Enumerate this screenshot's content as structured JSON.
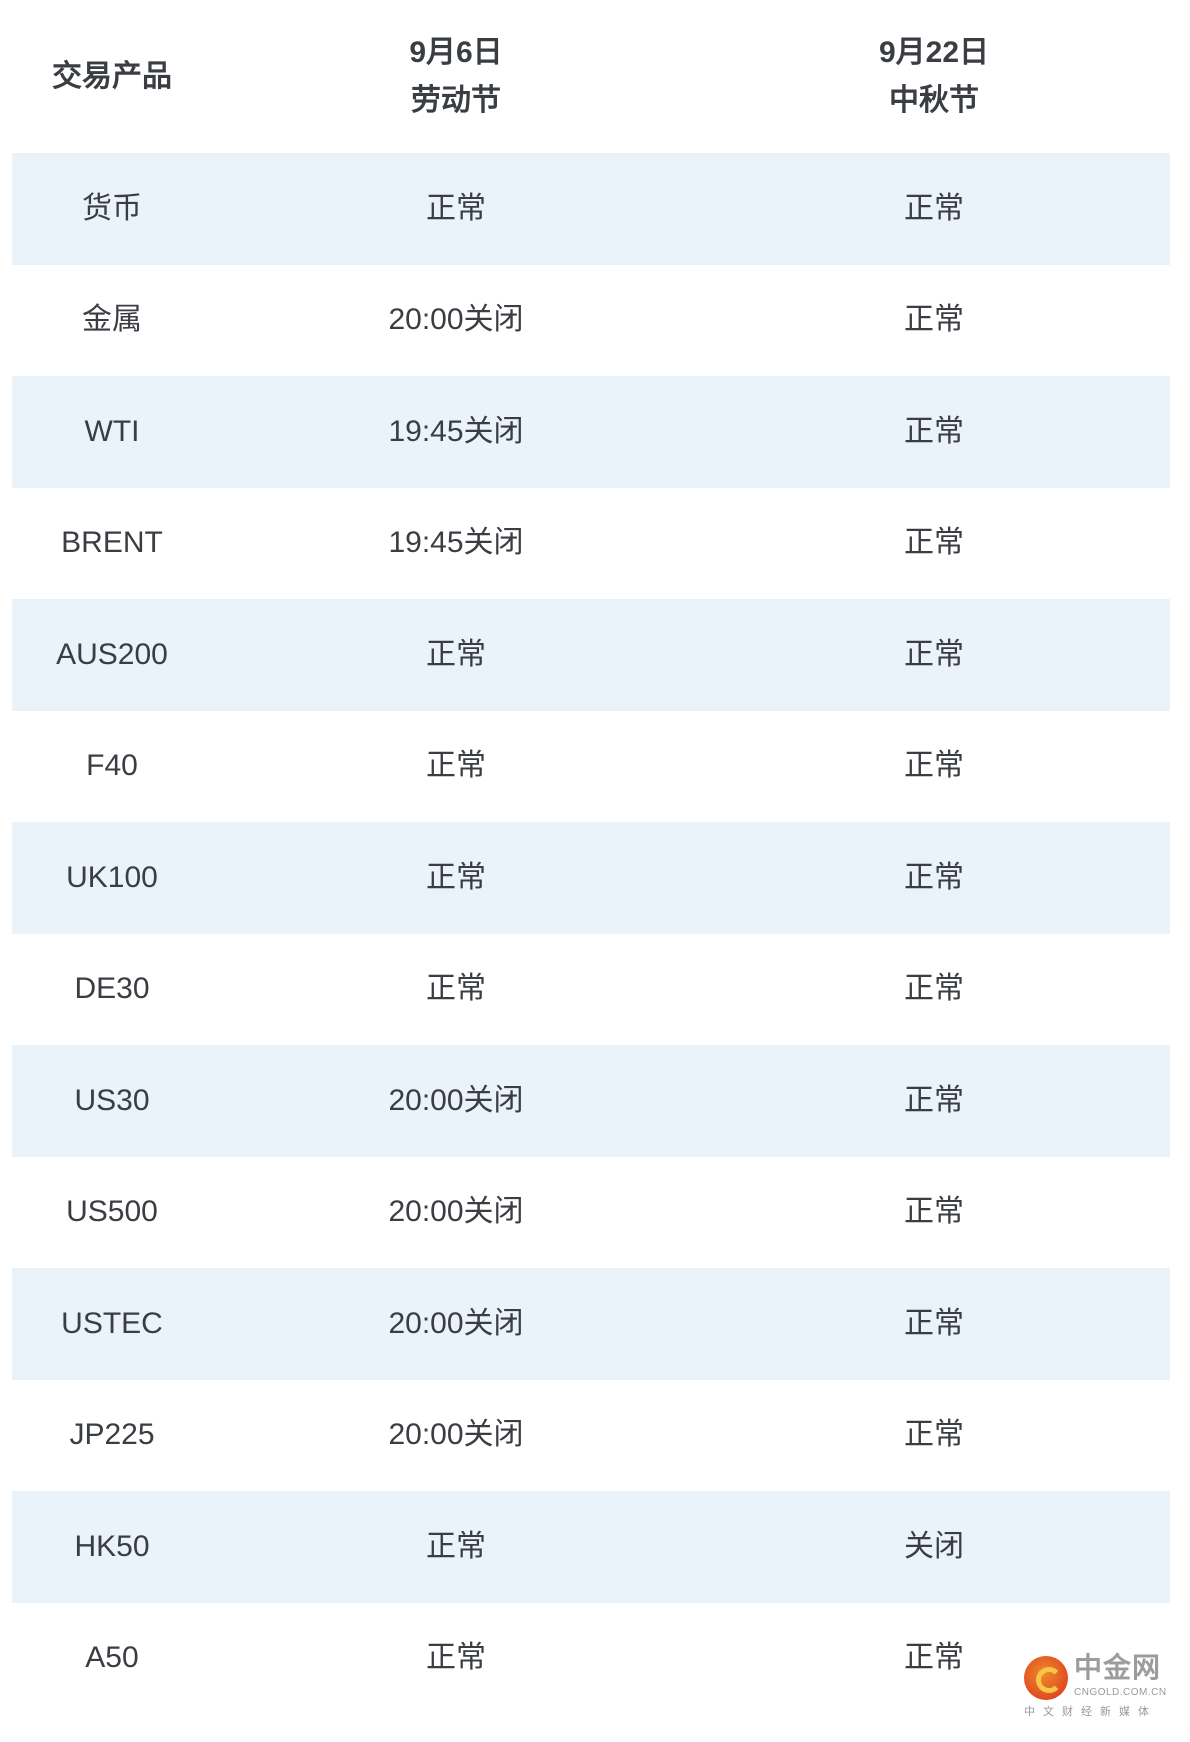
{
  "header": {
    "col0": "交易产品",
    "col1_date": "9月6日",
    "col1_name": "劳动节",
    "col2_date": "9月22日",
    "col2_name": "中秋节"
  },
  "rows": [
    [
      "货币",
      "正常",
      "正常"
    ],
    [
      "金属",
      "20:00关闭",
      "正常"
    ],
    [
      "WTI",
      "19:45关闭",
      "正常"
    ],
    [
      "BRENT",
      "19:45关闭",
      "正常"
    ],
    [
      "AUS200",
      "正常",
      "正常"
    ],
    [
      "F40",
      "正常",
      "正常"
    ],
    [
      "UK100",
      "正常",
      "正常"
    ],
    [
      "DE30",
      "正常",
      "正常"
    ],
    [
      "US30",
      "20:00关闭",
      "正常"
    ],
    [
      "US500",
      "20:00关闭",
      "正常"
    ],
    [
      "USTEC",
      "20:00关闭",
      "正常"
    ],
    [
      "JP225",
      "20:00关闭",
      "正常"
    ],
    [
      "HK50",
      "正常",
      "关闭"
    ],
    [
      "A50",
      "正常",
      "正常"
    ]
  ],
  "watermark": {
    "name": "中金网",
    "domain": "CNGOLD.COM.CN",
    "slogan": "中文财经新媒体"
  },
  "colors": {
    "stripe": "#eaf3fa",
    "text": "#3a3d42"
  }
}
